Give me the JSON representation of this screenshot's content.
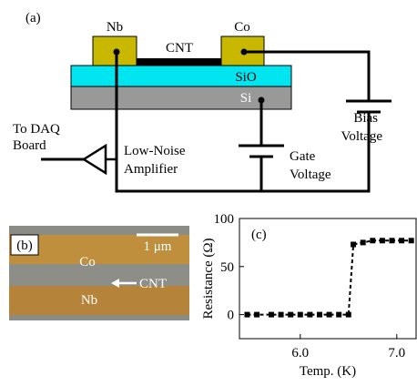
{
  "diagram": {
    "panel_label": "(a)",
    "nb_label": "Nb",
    "co_label": "Co",
    "cnt_label": "CNT",
    "sio_label": "SiO",
    "si_label": "Si",
    "bias_label": [
      "Bias",
      "Voltage"
    ],
    "daq_label": [
      "To DAQ",
      "Board"
    ],
    "amp_label": [
      "Low-Noise",
      "Amplifier"
    ],
    "gate_label": [
      "Gate",
      "Voltage"
    ]
  },
  "image": {
    "panel_label": "(b)",
    "scale_label": "1 μm",
    "co_label": "Co",
    "cnt_label": "CNT",
    "nb_label": "Nb"
  },
  "chart_data": {
    "type": "line",
    "panel_label": "(c)",
    "x_label": "Temp. (K)",
    "y_label": "Resistance (Ω)",
    "x": [
      5.45,
      5.55,
      5.7,
      5.8,
      5.9,
      6.0,
      6.1,
      6.2,
      6.3,
      6.4,
      6.5,
      6.55,
      6.65,
      6.75,
      6.85,
      6.95,
      7.05,
      7.15
    ],
    "series": [
      {
        "color": "#000000",
        "values": [
          0,
          0,
          0,
          0,
          0,
          0,
          0,
          0,
          0,
          0,
          0,
          73,
          75,
          77,
          77,
          77,
          77,
          77
        ]
      }
    ],
    "line_style": "dashed",
    "xlim": [
      5.37,
      7.2
    ],
    "ylim": [
      -25,
      100
    ],
    "xticks": [
      {
        "value": 6,
        "label": "6.0"
      },
      {
        "value": 7,
        "label": "7.0"
      }
    ],
    "yticks": [
      0,
      50,
      100
    ]
  }
}
